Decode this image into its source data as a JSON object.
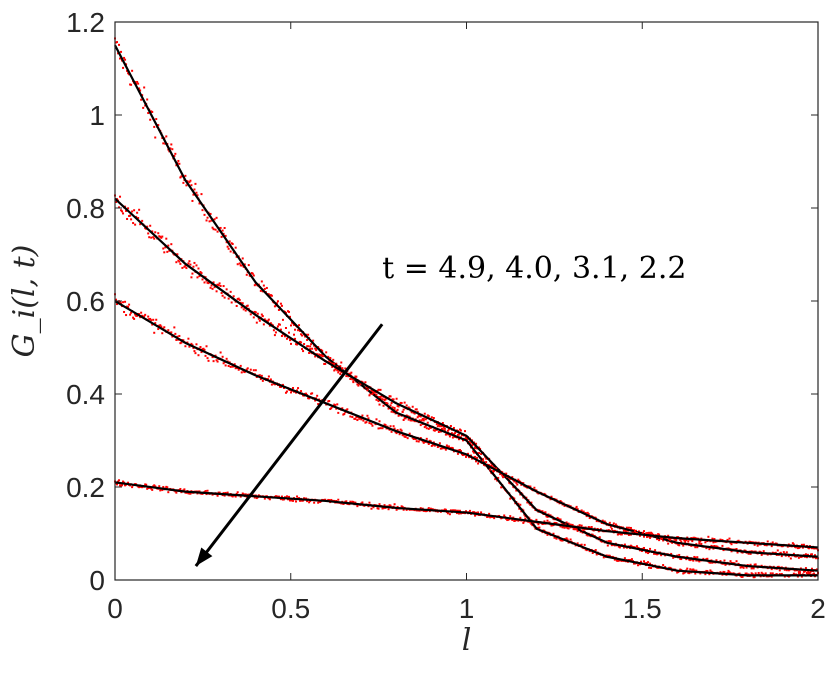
{
  "chart_data": {
    "type": "scatter",
    "title": "",
    "xlabel": "l",
    "ylabel": "G_i(l, t)",
    "xlim": [
      0,
      2
    ],
    "ylim": [
      0,
      1.2
    ],
    "xticks": [
      "0",
      "0.5",
      "1",
      "1.5",
      "2"
    ],
    "yticks": [
      "0",
      "0.2",
      "0.4",
      "0.6",
      "0.8",
      "1",
      "1.2"
    ],
    "grid": false,
    "annotation": "t = 4.9, 4.0, 3.1, 2.2",
    "colors": {
      "simulation": "#ff0000",
      "theory": "#000000",
      "axes": "#262626"
    },
    "x": [
      0,
      0.2,
      0.4,
      0.6,
      0.8,
      1.0,
      1.2,
      1.4,
      1.6,
      1.8,
      2.0
    ],
    "series": [
      {
        "t": 2.2,
        "values": [
          1.15,
          0.86,
          0.64,
          0.48,
          0.36,
          0.3,
          0.11,
          0.05,
          0.02,
          0.01,
          0.01
        ]
      },
      {
        "t": 3.1,
        "values": [
          0.82,
          0.68,
          0.57,
          0.47,
          0.38,
          0.31,
          0.15,
          0.08,
          0.05,
          0.03,
          0.02
        ]
      },
      {
        "t": 4.0,
        "values": [
          0.6,
          0.51,
          0.44,
          0.38,
          0.32,
          0.27,
          0.19,
          0.12,
          0.08,
          0.06,
          0.05
        ]
      },
      {
        "t": 4.9,
        "values": [
          0.21,
          0.19,
          0.18,
          0.17,
          0.155,
          0.145,
          0.125,
          0.105,
          0.09,
          0.08,
          0.07
        ]
      }
    ]
  }
}
